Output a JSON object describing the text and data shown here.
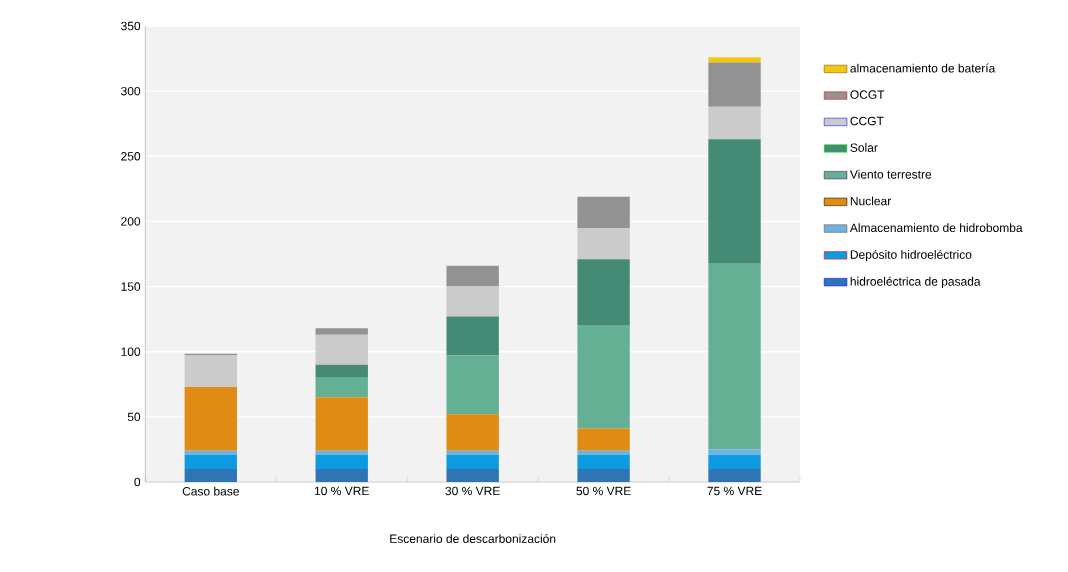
{
  "chart_data": {
    "type": "bar",
    "stacked": true,
    "xlabel": "Escenario de descarbonización",
    "categories": [
      "Caso base",
      "10 % VRE",
      "30 % VRE",
      "50 % VRE",
      "75 % VRE"
    ],
    "series": [
      {
        "name": "hidroeléctrica de pasada",
        "color": "#2e75b6",
        "values": [
          10,
          10,
          10,
          10,
          10
        ]
      },
      {
        "name": "Depósito hidroeléctrico",
        "color": "#0c9be0",
        "values": [
          11,
          11,
          11,
          11,
          11
        ]
      },
      {
        "name": "Almacenamiento de hidrobomba",
        "color": "#6fb2e4",
        "values": [
          3,
          3,
          3,
          3,
          4
        ]
      },
      {
        "name": "Nuclear",
        "color": "#e08c14",
        "values": [
          49,
          41,
          28,
          17,
          0
        ]
      },
      {
        "name": "Viento terrestre",
        "color": "#63b095",
        "values": [
          0,
          15,
          45,
          79,
          143
        ]
      },
      {
        "name": "Solar",
        "color": "#458a74",
        "values": [
          0,
          10,
          30,
          51,
          95
        ]
      },
      {
        "name": "CCGT",
        "color": "#cbcbcb",
        "values": [
          24,
          23,
          23,
          24,
          25
        ]
      },
      {
        "name": "OCGT",
        "color": "#929292",
        "values": [
          1.5,
          5,
          16,
          24,
          34
        ]
      },
      {
        "name": "almacenamiento de batería",
        "color": "#f2c80f",
        "values": [
          0,
          0,
          0,
          0,
          4
        ]
      }
    ],
    "ylim": [
      0,
      350
    ],
    "yticks": [
      0,
      50,
      100,
      150,
      200,
      250,
      300,
      350
    ],
    "grid": "y",
    "legend": "right"
  }
}
